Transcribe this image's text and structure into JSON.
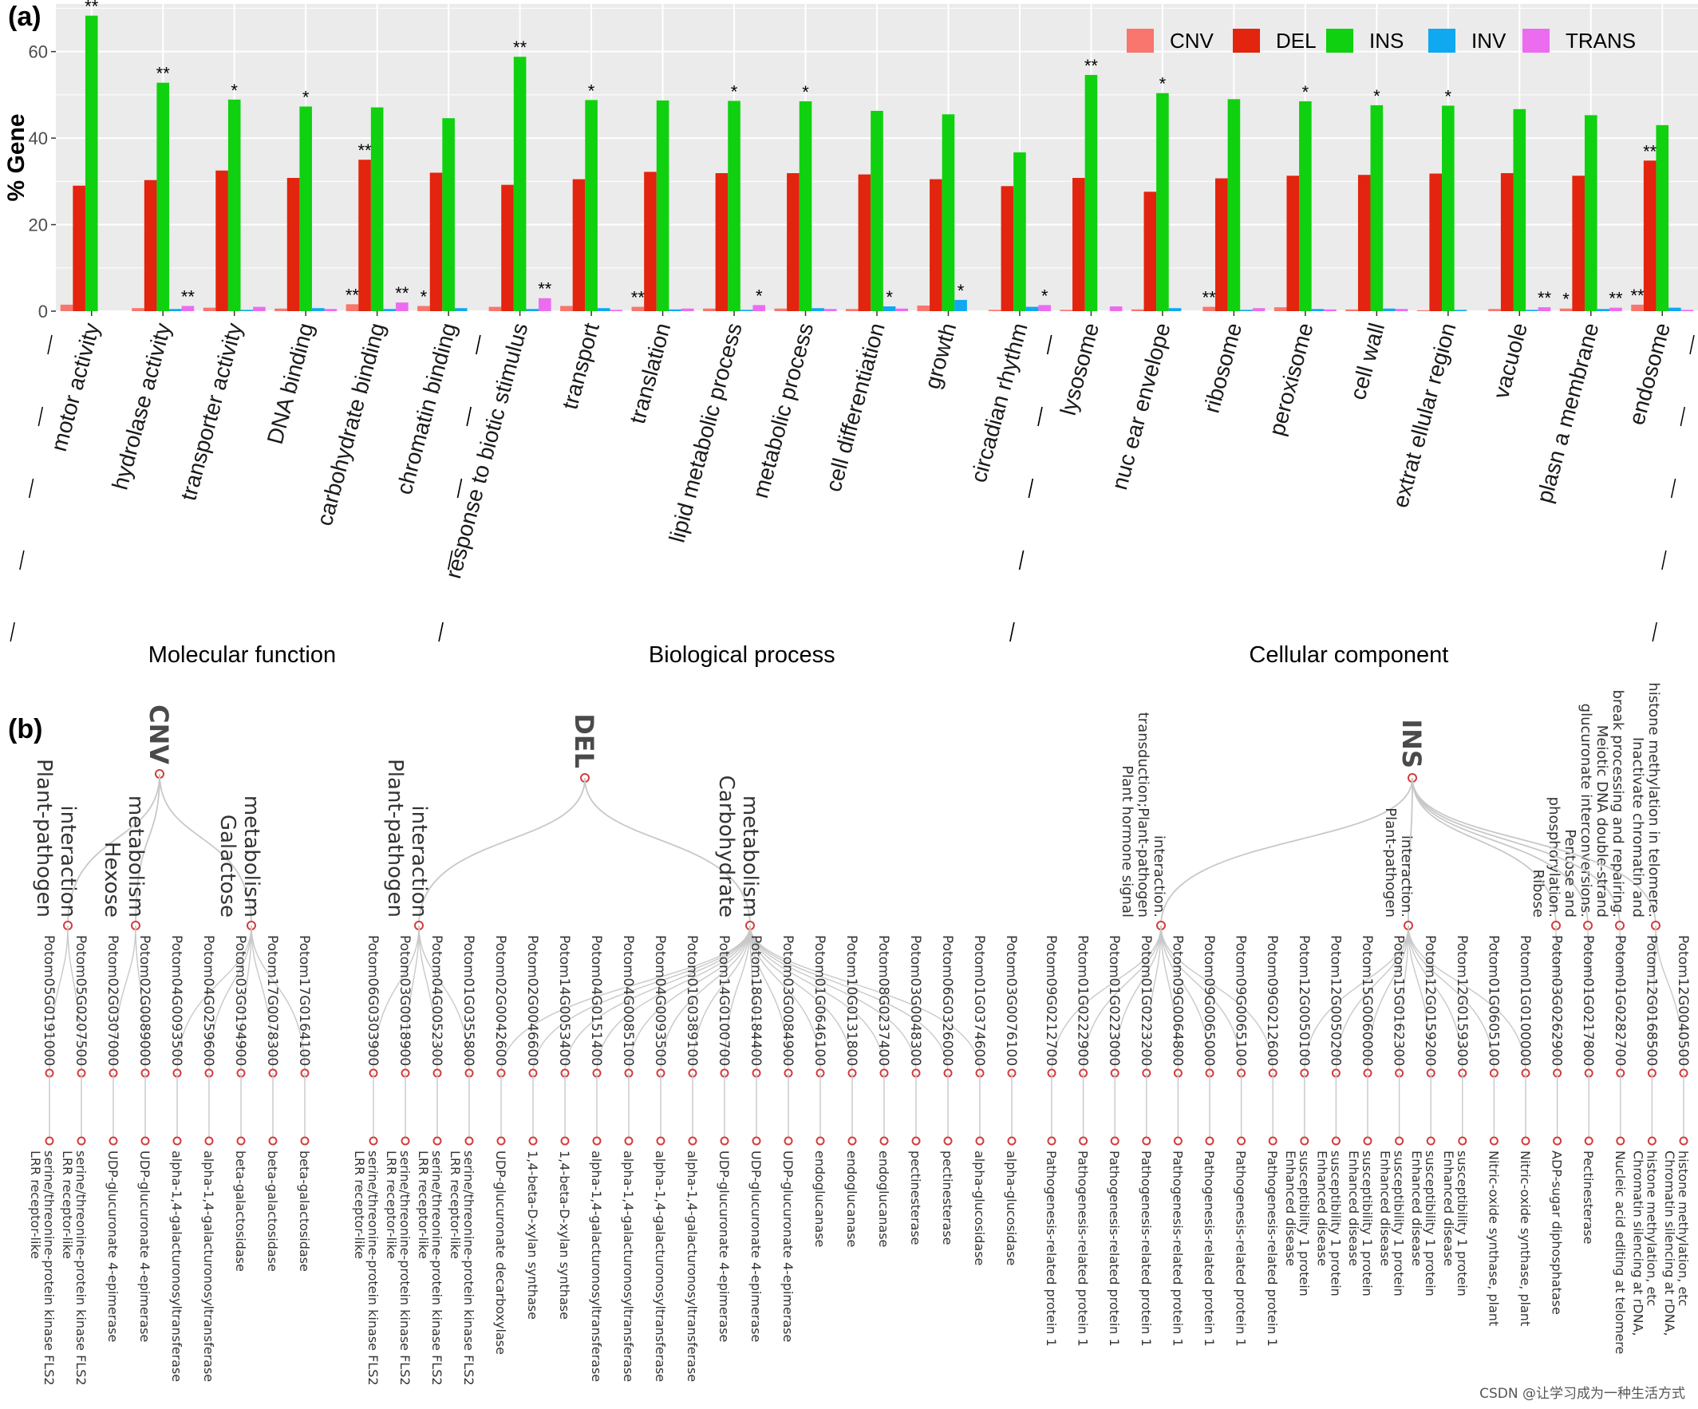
{
  "panel_labels": {
    "a": "(a)",
    "b": "(b)"
  },
  "colors": {
    "CNV": "#f8766d",
    "DEL": "#e3240e",
    "INS": "#0fd10f",
    "INV": "#10a8f0",
    "TRANS": "#ec6cf0",
    "panel_bg": "#ebebeb",
    "grid": "#ffffff",
    "tree_line": "#c8c8c8",
    "tree_node": "#d23c3c"
  },
  "chart_data": {
    "type": "bar",
    "ylabel": "% Gene",
    "xlabel": "",
    "ylim": [
      0,
      71
    ],
    "yticks": [
      0,
      20,
      40,
      60
    ],
    "grid": true,
    "legend_position": "top-right",
    "categories": [
      "motor activity",
      "hydrolase activity",
      "transporter activity",
      "DNA binding",
      "carbohydrate binding",
      "chromatin binding",
      "response to biotic stimulus",
      "transport",
      "translation",
      "lipid metabolic process",
      "metabolic process",
      "cell differentiation",
      "growth",
      "circadian rhythm",
      "lysosome",
      "nuc ear envelope",
      "ribosome",
      "peroxisome",
      "cell wall",
      "extrat ellular region",
      "vacuole",
      "plasn a membrane",
      "endosome"
    ],
    "groups": [
      {
        "name": "Molecular function",
        "from": 0,
        "to": 5
      },
      {
        "name": "Biological process",
        "from": 6,
        "to": 13
      },
      {
        "name": "Cellular component",
        "from": 14,
        "to": 22
      }
    ],
    "series": [
      {
        "name": "CNV",
        "values": [
          1.5,
          0.7,
          0.8,
          0.6,
          1.6,
          1.2,
          1.0,
          1.2,
          1.0,
          0.6,
          0.6,
          0.5,
          1.3,
          0.3,
          0.3,
          0.4,
          1.0,
          0.9,
          0.4,
          0.2,
          0.5,
          0.6,
          1.5
        ]
      },
      {
        "name": "DEL",
        "values": [
          29,
          30.3,
          32.5,
          30.8,
          35,
          32,
          29.2,
          30.5,
          32.2,
          31.9,
          31.9,
          31.6,
          30.5,
          28.9,
          30.8,
          27.6,
          30.7,
          31.3,
          31.5,
          31.8,
          31.9,
          31.3,
          34.8
        ]
      },
      {
        "name": "INS",
        "values": [
          68.3,
          52.8,
          48.9,
          47.3,
          47.1,
          44.6,
          58.8,
          48.8,
          48.7,
          48.6,
          48.5,
          46.3,
          45.5,
          36.7,
          54.6,
          50.4,
          49,
          48.5,
          47.6,
          47.5,
          46.7,
          45.3,
          43
        ]
      },
      {
        "name": "INV",
        "values": [
          0,
          0.5,
          0.3,
          0.7,
          0.5,
          0.7,
          0.5,
          0.7,
          0.4,
          0.3,
          0.7,
          1.1,
          2.6,
          1.0,
          0,
          0.7,
          0.3,
          0.5,
          0.6,
          0.3,
          0.3,
          0.5,
          0.8
        ]
      },
      {
        "name": "TRANS",
        "values": [
          0,
          1.2,
          1.0,
          0.5,
          2.0,
          0,
          3.0,
          0.3,
          0.6,
          1.4,
          0.5,
          0.6,
          0,
          1.4,
          1.1,
          0,
          0.7,
          0.4,
          0.5,
          0,
          0.9,
          0.8,
          0.3
        ]
      }
    ],
    "annotations": [
      {
        "category": 0,
        "series": "INS",
        "text": "**"
      },
      {
        "category": 1,
        "series": "INS",
        "text": "**"
      },
      {
        "category": 1,
        "series": "TRANS",
        "text": "**"
      },
      {
        "category": 2,
        "series": "INS",
        "text": "*"
      },
      {
        "category": 3,
        "series": "INS",
        "text": "*"
      },
      {
        "category": 4,
        "series": "DEL",
        "text": "**"
      },
      {
        "category": 4,
        "series": "CNV",
        "text": "**"
      },
      {
        "category": 4,
        "series": "TRANS",
        "text": "**"
      },
      {
        "category": 5,
        "series": "CNV",
        "text": "*"
      },
      {
        "category": 6,
        "series": "INS",
        "text": "**"
      },
      {
        "category": 6,
        "series": "TRANS",
        "text": "**"
      },
      {
        "category": 7,
        "series": "INS",
        "text": "*"
      },
      {
        "category": 8,
        "series": "CNV",
        "text": "**"
      },
      {
        "category": 9,
        "series": "INS",
        "text": "*"
      },
      {
        "category": 9,
        "series": "TRANS",
        "text": "*"
      },
      {
        "category": 10,
        "series": "INS",
        "text": "*"
      },
      {
        "category": 11,
        "series": "INV",
        "text": "*"
      },
      {
        "category": 12,
        "series": "INV",
        "text": "*"
      },
      {
        "category": 13,
        "series": "TRANS",
        "text": "*"
      },
      {
        "category": 14,
        "series": "INS",
        "text": "**"
      },
      {
        "category": 15,
        "series": "INS",
        "text": "*"
      },
      {
        "category": 16,
        "series": "CNV",
        "text": "**"
      },
      {
        "category": 17,
        "series": "INS",
        "text": "*"
      },
      {
        "category": 18,
        "series": "INS",
        "text": "*"
      },
      {
        "category": 19,
        "series": "INS",
        "text": "*"
      },
      {
        "category": 20,
        "series": "TRANS",
        "text": "**"
      },
      {
        "category": 21,
        "series": "CNV",
        "text": "*"
      },
      {
        "category": 21,
        "series": "TRANS",
        "text": "**"
      },
      {
        "category": 22,
        "series": "CNV",
        "text": "**"
      },
      {
        "category": 22,
        "series": "DEL",
        "text": "**"
      }
    ]
  },
  "tree": {
    "roots": [
      {
        "name": "CNV",
        "pathways": [
          {
            "label": [
              "Plant-pathogen",
              "interaction"
            ],
            "genes": [
              0,
              1
            ]
          },
          {
            "label": [
              "Hexose",
              "metabolism"
            ],
            "genes": [
              2,
              3
            ]
          },
          {
            "label": [
              "Galactose",
              "metabolism"
            ],
            "genes": [
              4,
              5,
              6,
              7,
              8
            ]
          }
        ],
        "genes": [
          {
            "id": "Potom05G0191000",
            "desc": [
              "LRR receptor-like",
              "serine/threonine-protein kinase FLS2"
            ]
          },
          {
            "id": "Potom05G0207500",
            "desc": [
              "LRR receptor-like",
              "serine/threonine-protein kinase FLS2"
            ]
          },
          {
            "id": "Potom02G0307000",
            "desc": [
              "UDP-glucuronate 4-epimerase"
            ]
          },
          {
            "id": "Potom02G0089000",
            "desc": [
              "UDP-glucuronate 4-epimerase"
            ]
          },
          {
            "id": "Potom04G0093500",
            "desc": [
              "alpha-1,4-galacturonosyltransferase"
            ]
          },
          {
            "id": "Potom04G0259600",
            "desc": [
              "alpha-1,4-galacturonosyltransferase"
            ]
          },
          {
            "id": "Potom03G0194900",
            "desc": [
              "beta-galactosidase"
            ]
          },
          {
            "id": "Potom17G0078300",
            "desc": [
              "beta-galactosidase"
            ]
          },
          {
            "id": "Potom17G0164100",
            "desc": [
              "beta-galactosidase"
            ]
          }
        ]
      },
      {
        "name": "DEL",
        "pathways": [
          {
            "label": [
              "Plant-pathogen",
              "interaction"
            ],
            "genes": [
              0,
              1,
              2,
              3
            ]
          },
          {
            "label": [
              "Carbohydrate",
              "metabolism"
            ],
            "genes": [
              4,
              5,
              6,
              7,
              8,
              9,
              10,
              11,
              12,
              13,
              14,
              15,
              16,
              17,
              18,
              19
            ]
          }
        ],
        "genes": [
          {
            "id": "Potom06G0303900",
            "desc": [
              "LRR receptor-like",
              "serine/threonine-protein kinase FLS2"
            ]
          },
          {
            "id": "Potom03G0018900",
            "desc": [
              "LRR receptor-like",
              "serine/threonine-protein kinase FLS2"
            ]
          },
          {
            "id": "Potom04G0052300",
            "desc": [
              "LRR receptor-like",
              "serine/threonine-protein kinase FLS2"
            ]
          },
          {
            "id": "Potom01G0355800",
            "desc": [
              "LRR receptor-like",
              "serine/threonine-protein kinase FLS2"
            ]
          },
          {
            "id": "Potom02G0042600",
            "desc": [
              "UDP-glucuronate decarboxylase"
            ]
          },
          {
            "id": "Potom02G0046600",
            "desc": [
              "1,4-beta-D-xylan synthase"
            ]
          },
          {
            "id": "Potom14G0053400",
            "desc": [
              "1,4-beta-D-xylan synthase"
            ]
          },
          {
            "id": "Potom04G0151400",
            "desc": [
              "alpha-1,4-galacturonosyltransferase"
            ]
          },
          {
            "id": "Potom04G0085100",
            "desc": [
              "alpha-1,4-galacturonosyltransferase"
            ]
          },
          {
            "id": "Potom04G0093500",
            "desc": [
              "alpha-1,4-galacturonosyltransferase"
            ]
          },
          {
            "id": "Potom01G0389100",
            "desc": [
              "alpha-1,4-galacturonosyltransferase"
            ]
          },
          {
            "id": "Potom14G0100700",
            "desc": [
              "UDP-glucuronate 4-epimerase"
            ]
          },
          {
            "id": "Potom18G0184400",
            "desc": [
              "UDP-glucuronate 4-epimerase"
            ]
          },
          {
            "id": "Potom03G0084900",
            "desc": [
              "UDP-glucuronate 4-epimerase"
            ]
          },
          {
            "id": "Potom01G0646100",
            "desc": [
              "endoglucanase"
            ]
          },
          {
            "id": "Potom10G0131800",
            "desc": [
              "endoglucanase"
            ]
          },
          {
            "id": "Potom08G0237400",
            "desc": [
              "endoglucanase"
            ]
          },
          {
            "id": "Potom03G0048300",
            "desc": [
              "pectinesterase"
            ]
          },
          {
            "id": "Potom06G0326000",
            "desc": [
              "pectinesterase"
            ]
          },
          {
            "id": "Potom01G0374600",
            "desc": [
              "alpha-glucosidase"
            ]
          },
          {
            "id": "Potom03G0076100",
            "desc": [
              "alpha-glucosidase"
            ]
          }
        ]
      },
      {
        "name": "INS",
        "pathways": [
          {
            "label": [
              "Plant hormone signal",
              "transduction;Plant-pathogen",
              "interaction."
            ],
            "genes": [
              0,
              1,
              2,
              3,
              4,
              5,
              6,
              7
            ],
            "small": true
          },
          {
            "label": [
              "Plant-pathogen",
              "interaction."
            ],
            "genes": [
              8,
              9,
              10,
              11,
              12,
              13,
              14,
              15
            ],
            "small": true
          },
          {
            "label": [
              "Ribose",
              "phosphorylation."
            ],
            "genes": [
              16
            ],
            "small": true
          },
          {
            "label": [
              "Pentose and",
              "glucuronate interconversions."
            ],
            "genes": [
              17
            ],
            "small": true
          },
          {
            "label": [
              "Meiotic DNA double-strand",
              "break processing and repairing."
            ],
            "genes": [
              18
            ],
            "small": true
          },
          {
            "label": [
              "Inactivate chromatin and",
              "histone methylation in telomere."
            ],
            "genes": [
              19,
              20
            ],
            "small": true
          }
        ],
        "genes": [
          {
            "id": "Potom09G0212700",
            "desc": [
              "Pathogenesis-related protein 1"
            ]
          },
          {
            "id": "Potom01G0222900",
            "desc": [
              "Pathogenesis-related protein 1"
            ]
          },
          {
            "id": "Potom01G0223000",
            "desc": [
              "Pathogenesis-related protein 1"
            ]
          },
          {
            "id": "Potom01G0223200",
            "desc": [
              "Pathogenesis-related protein 1"
            ]
          },
          {
            "id": "Potom09G0064800",
            "desc": [
              "Pathogenesis-related protein 1"
            ]
          },
          {
            "id": "Potom09G0065000",
            "desc": [
              "Pathogenesis-related protein 1"
            ]
          },
          {
            "id": "Potom09G0065100",
            "desc": [
              "Pathogenesis-related protein 1"
            ]
          },
          {
            "id": "Potom09G0212600",
            "desc": [
              "Pathogenesis-related protein 1"
            ]
          },
          {
            "id": "Potom12G0050100",
            "desc": [
              "Enhanced disease",
              "susceptibility 1 protein"
            ]
          },
          {
            "id": "Potom12G0050200",
            "desc": [
              "Enhanced disease",
              "susceptibility 1 protein"
            ]
          },
          {
            "id": "Potom15G0060000",
            "desc": [
              "Enhanced disease",
              "susceptibility 1 protein"
            ]
          },
          {
            "id": "Potom15G0162300",
            "desc": [
              "Enhanced disease",
              "susceptibility 1 protein"
            ]
          },
          {
            "id": "Potom12G0159200",
            "desc": [
              "Enhanced disease",
              "susceptibility 1 protein"
            ]
          },
          {
            "id": "Potom12G0159300",
            "desc": [
              "Enhanced disease",
              "susceptibility 1 protein"
            ]
          },
          {
            "id": "Potom01G0605100",
            "desc": [
              "Nitric-oxide synthase, plant"
            ]
          },
          {
            "id": "Potom01G0100000",
            "desc": [
              "Nitric-oxide synthase, plant"
            ]
          },
          {
            "id": "Potom03G0262900",
            "desc": [
              "ADP-sugar diphosphatase"
            ]
          },
          {
            "id": "Potom01G0217800",
            "desc": [
              "Pectinesterase"
            ]
          },
          {
            "id": "Potom01G0282700",
            "desc": [
              "Nucleic acid editing at telomere"
            ]
          },
          {
            "id": "Potom12G0168500",
            "desc": [
              "Chromatin silencing at rDNA,",
              "histone methylation, etc"
            ]
          },
          {
            "id": "Potom12G0040500",
            "desc": [
              "Chromatin silencing at rDNA,",
              "histone methylation, etc"
            ]
          }
        ]
      }
    ]
  },
  "watermark": "CSDN @让学习成为一种生活方式"
}
